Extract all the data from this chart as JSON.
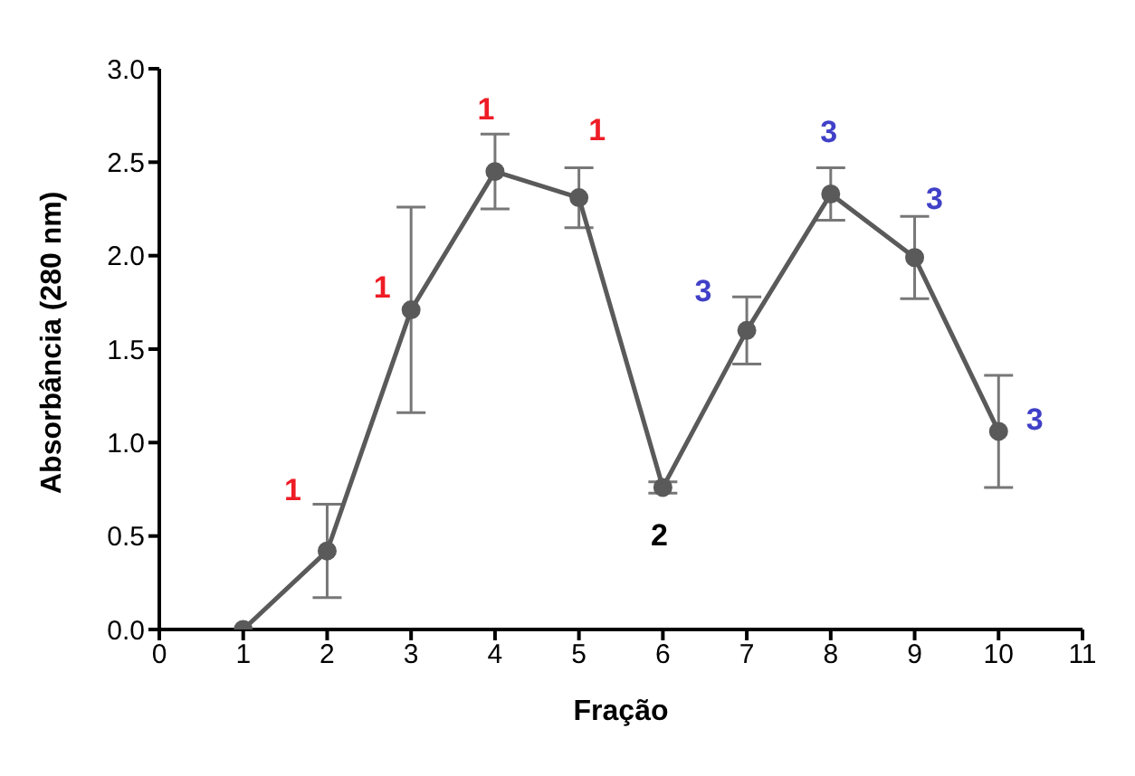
{
  "chart_data": {
    "type": "line",
    "xlabel": "Fração",
    "ylabel": "Absorbância (280 nm)",
    "x": [
      1,
      2,
      3,
      4,
      5,
      6,
      7,
      8,
      9,
      10
    ],
    "series": [
      {
        "color": "#5a5a5a",
        "values": [
          0.0,
          0.42,
          1.71,
          2.45,
          2.31,
          0.76,
          1.6,
          2.33,
          1.99,
          1.06
        ],
        "errors": [
          null,
          0.25,
          0.55,
          0.2,
          0.16,
          0.03,
          0.18,
          0.14,
          0.22,
          0.3
        ]
      }
    ],
    "xlim": [
      0,
      11
    ],
    "xticks": [
      0,
      1,
      2,
      3,
      4,
      5,
      6,
      7,
      8,
      9,
      10,
      11
    ],
    "ylim": [
      0,
      3
    ],
    "yticks": [
      {
        "value": 0,
        "label": "0.0"
      },
      {
        "value": 0.5,
        "label": "0.5"
      },
      {
        "value": 1,
        "label": "1.0"
      },
      {
        "value": 1.5,
        "label": "1.5"
      },
      {
        "value": 2,
        "label": "2.0"
      },
      {
        "value": 2.5,
        "label": "2.5"
      },
      {
        "value": 3,
        "label": "3.0"
      }
    ],
    "grid": false,
    "legend": false,
    "marker": "circle",
    "line_style": "solid",
    "annotations": [
      {
        "text": "1",
        "x": 2,
        "y": 0.42
      },
      {
        "text": "1",
        "x": 3,
        "y": 1.71
      },
      {
        "text": "1",
        "x": 4,
        "y": 2.45
      },
      {
        "text": "1",
        "x": 5,
        "y": 2.31
      },
      {
        "text": "2",
        "x": 6,
        "y": 0.76
      },
      {
        "text": "3",
        "x": 7,
        "y": 1.6
      },
      {
        "text": "3",
        "x": 8,
        "y": 2.33
      },
      {
        "text": "3",
        "x": 9,
        "y": 1.99
      },
      {
        "text": "3",
        "x": 10,
        "y": 1.06
      }
    ]
  }
}
